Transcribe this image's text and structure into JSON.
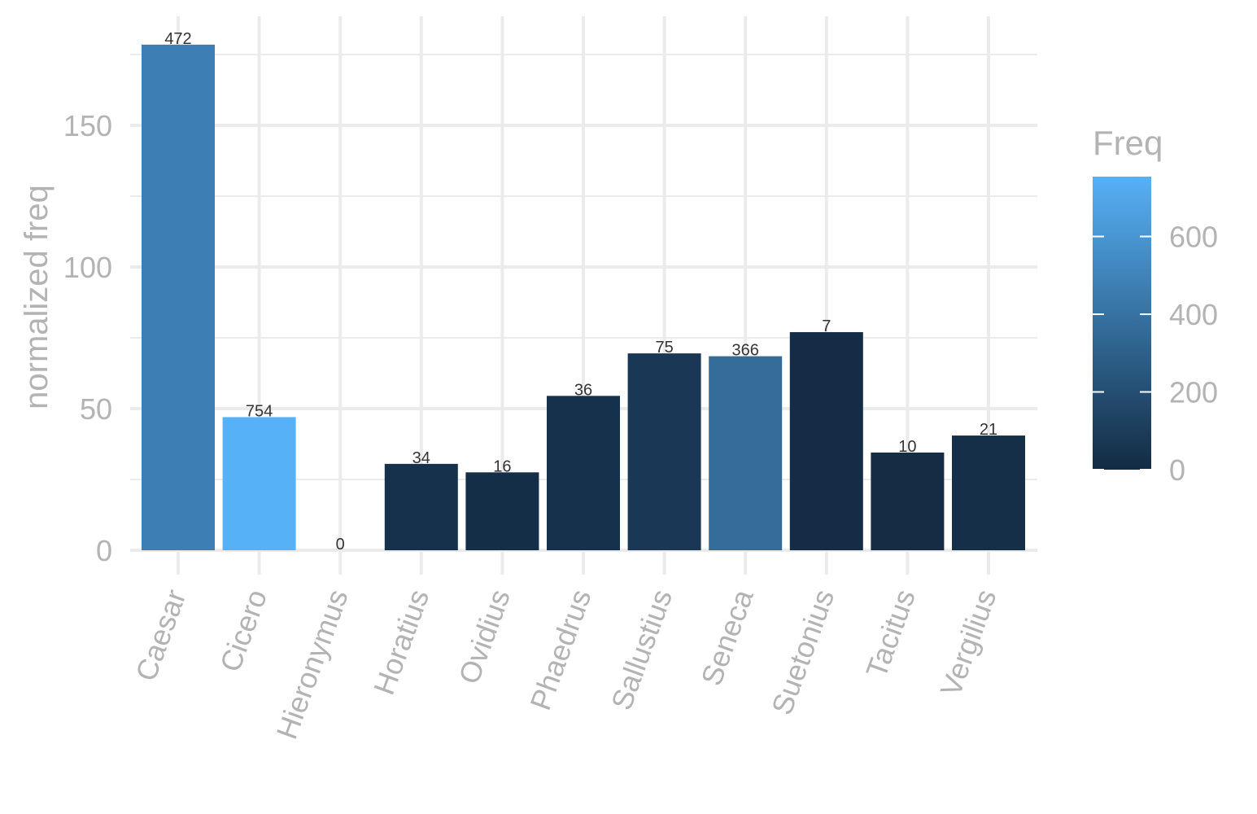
{
  "chart_data": {
    "type": "bar",
    "title": "",
    "xlabel": "",
    "ylabel": "normalized freq",
    "ylim": [
      0,
      180
    ],
    "yticks": [
      0,
      50,
      100,
      150
    ],
    "grid": true,
    "legend_position": "right",
    "categories": [
      "Caesar",
      "Cicero",
      "Hieronymus",
      "Horatius",
      "Ovidius",
      "Phaedrus",
      "Sallustius",
      "Seneca",
      "Suetonius",
      "Tacitus",
      "Vergilius"
    ],
    "values": [
      178.5,
      47,
      0,
      30.5,
      27.5,
      54.5,
      69.5,
      68.5,
      77,
      34.5,
      40.5
    ],
    "freq": [
      472,
      754,
      0,
      34,
      16,
      36,
      75,
      366,
      7,
      10,
      21
    ],
    "fill_legend": {
      "title": "Freq",
      "ticks": [
        0,
        200,
        400,
        600
      ],
      "min": 0,
      "max": 754,
      "low_color": "#132B43",
      "high_color": "#56B1F7"
    }
  }
}
